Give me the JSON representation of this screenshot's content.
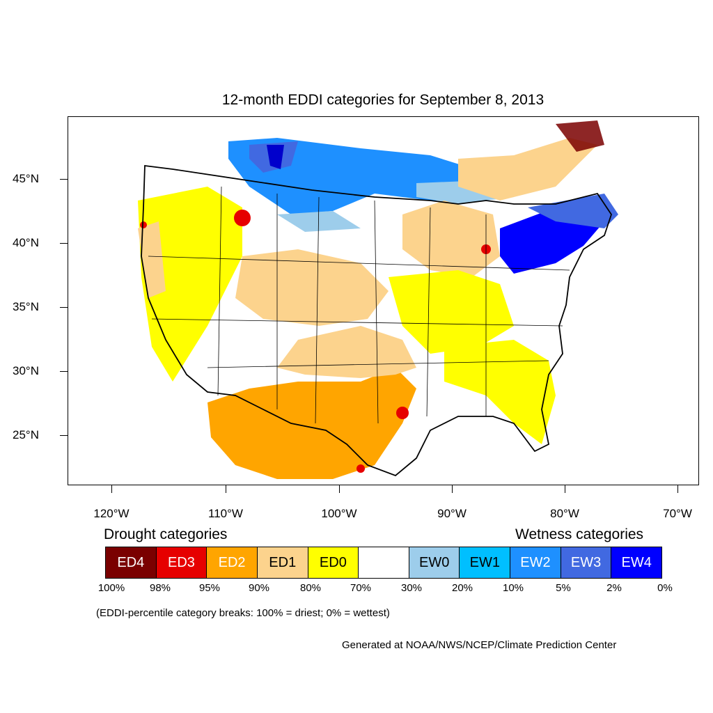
{
  "title": "12-month EDDI categories for September 8, 2013",
  "lat_labels": [
    "45°N",
    "40°N",
    "35°N",
    "30°N",
    "25°N"
  ],
  "lon_labels": [
    "120°W",
    "110°W",
    "100°W",
    "90°W",
    "80°W",
    "70°W"
  ],
  "legend": {
    "drought_heading": "Drought categories",
    "wetness_heading": "Wetness categories",
    "categories": [
      {
        "label": "ED4",
        "color": "#7a0000"
      },
      {
        "label": "ED3",
        "color": "#e60000"
      },
      {
        "label": "ED2",
        "color": "#ffa500"
      },
      {
        "label": "ED1",
        "color": "#fcd38d"
      },
      {
        "label": "ED0",
        "color": "#ffff00"
      },
      {
        "label": "",
        "color": "#ffffff"
      },
      {
        "label": "EW0",
        "color": "#9dcdeb"
      },
      {
        "label": "EW1",
        "color": "#00bfff"
      },
      {
        "label": "EW2",
        "color": "#1e90ff"
      },
      {
        "label": "EW3",
        "color": "#4169e1"
      },
      {
        "label": "EW4",
        "color": "#0000ff"
      }
    ],
    "breaks": [
      "100%",
      "98%",
      "95%",
      "90%",
      "80%",
      "70%",
      "30%",
      "20%",
      "10%",
      "5%",
      "2%",
      "0%"
    ]
  },
  "note": "(EDDI-percentile category breaks: 100% = driest; 0% = wettest)",
  "credit": "Generated at NOAA/NWS/NCEP/Climate Prediction Center"
}
